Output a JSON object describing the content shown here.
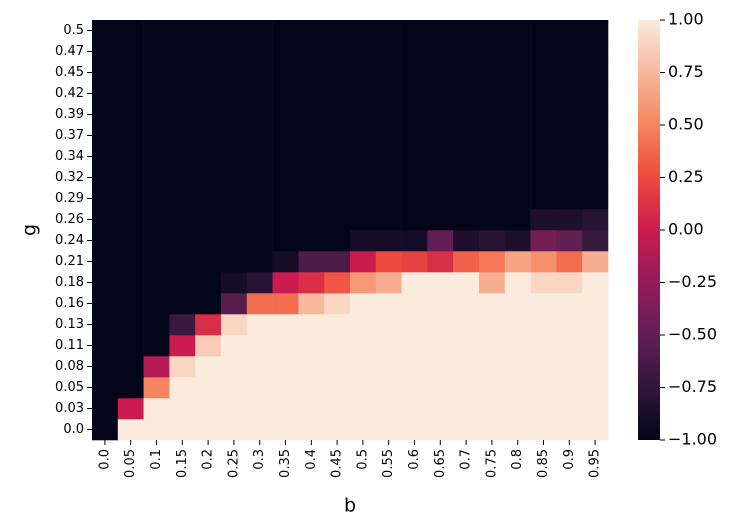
{
  "chart_data": {
    "type": "heatmap",
    "x_label": "b",
    "y_label": "g",
    "x_categories": [
      "0.0",
      "0.05",
      "0.1",
      "0.15",
      "0.2",
      "0.25",
      "0.3",
      "0.35",
      "0.4",
      "0.45",
      "0.5",
      "0.55",
      "0.6",
      "0.65",
      "0.7",
      "0.75",
      "0.8",
      "0.85",
      "0.9",
      "0.95"
    ],
    "y_categories": [
      "0.0",
      "0.03",
      "0.05",
      "0.08",
      "0.11",
      "0.13",
      "0.16",
      "0.18",
      "0.21",
      "0.24",
      "0.26",
      "0.29",
      "0.32",
      "0.34",
      "0.37",
      "0.39",
      "0.42",
      "0.45",
      "0.47",
      "0.5"
    ],
    "values": [
      [
        -1,
        1,
        1,
        1,
        1,
        1,
        1,
        1,
        1,
        1,
        1,
        1,
        1,
        1,
        1,
        1,
        1,
        1,
        1,
        1
      ],
      [
        -1,
        0,
        1,
        1,
        1,
        1,
        1,
        1,
        1,
        1,
        1,
        1,
        1,
        1,
        1,
        1,
        1,
        1,
        1,
        1
      ],
      [
        -1,
        -1,
        0.5,
        1,
        1,
        1,
        1,
        1,
        1,
        1,
        1,
        1,
        1,
        1,
        1,
        1,
        1,
        1,
        1,
        1
      ],
      [
        -1,
        -1,
        -0.1,
        0.9,
        1,
        1,
        1,
        1,
        1,
        1,
        1,
        1,
        1,
        1,
        1,
        1,
        1,
        1,
        1,
        1
      ],
      [
        -1,
        -1,
        -1,
        0,
        0.85,
        1,
        1,
        1,
        1,
        1,
        1,
        1,
        1,
        1,
        1,
        1,
        1,
        1,
        1,
        1
      ],
      [
        -1,
        -1,
        -1,
        -0.7,
        0.1,
        0.9,
        1,
        1,
        1,
        1,
        1,
        1,
        1,
        1,
        1,
        1,
        1,
        1,
        1,
        1
      ],
      [
        -1,
        -1,
        -1,
        -1,
        -1,
        -0.55,
        0.4,
        0.4,
        0.75,
        0.9,
        1,
        1,
        1,
        1,
        1,
        1,
        1,
        1,
        1,
        1
      ],
      [
        -1,
        -1,
        -1,
        -1,
        -1,
        -0.9,
        -0.8,
        0,
        0.1,
        0.3,
        0.6,
        0.7,
        1,
        1,
        1,
        0.7,
        1,
        0.9,
        0.9,
        1
      ],
      [
        -1,
        -1,
        -1,
        -1,
        -1,
        -1,
        -1,
        -0.9,
        -0.6,
        -0.6,
        0,
        0.25,
        0.2,
        0.1,
        0.35,
        0.45,
        0.65,
        0.55,
        0.4,
        0.7
      ],
      [
        -1,
        -1,
        -1,
        -1,
        -1,
        -1,
        -1,
        -1,
        -1,
        -1,
        -0.9,
        -0.9,
        -0.9,
        -0.5,
        -0.85,
        -0.8,
        -0.85,
        -0.4,
        -0.5,
        -0.7
      ],
      [
        -1,
        -1,
        -1,
        -1,
        -1,
        -1,
        -1,
        -1,
        -1,
        -1,
        -1,
        -1,
        -1,
        -1,
        -1,
        -1,
        -1,
        -0.85,
        -0.85,
        -0.8
      ],
      [
        -1,
        -1,
        -1,
        -1,
        -1,
        -1,
        -1,
        -1,
        -1,
        -1,
        -1,
        -1,
        -1,
        -1,
        -1,
        -1,
        -1,
        -1,
        -1,
        -1
      ],
      [
        -1,
        -1,
        -1,
        -1,
        -1,
        -1,
        -1,
        -1,
        -1,
        -1,
        -1,
        -1,
        -1,
        -1,
        -1,
        -1,
        -1,
        -1,
        -1,
        -1
      ],
      [
        -1,
        -1,
        -1,
        -1,
        -1,
        -1,
        -1,
        -1,
        -1,
        -1,
        -1,
        -1,
        -1,
        -1,
        -1,
        -1,
        -1,
        -1,
        -1,
        -1
      ],
      [
        -1,
        -1,
        -1,
        -1,
        -1,
        -1,
        -1,
        -1,
        -1,
        -1,
        -1,
        -1,
        -1,
        -1,
        -1,
        -1,
        -1,
        -1,
        -1,
        -1
      ],
      [
        -1,
        -1,
        -1,
        -1,
        -1,
        -1,
        -1,
        -1,
        -1,
        -1,
        -1,
        -1,
        -1,
        -1,
        -1,
        -1,
        -1,
        -1,
        -1,
        -1
      ],
      [
        -1,
        -1,
        -1,
        -1,
        -1,
        -1,
        -1,
        -1,
        -1,
        -1,
        -1,
        -1,
        -1,
        -1,
        -1,
        -1,
        -1,
        -1,
        -1,
        -1
      ],
      [
        -1,
        -1,
        -1,
        -1,
        -1,
        -1,
        -1,
        -1,
        -1,
        -1,
        -1,
        -1,
        -1,
        -1,
        -1,
        -1,
        -1,
        -1,
        -1,
        -1
      ],
      [
        -1,
        -1,
        -1,
        -1,
        -1,
        -1,
        -1,
        -1,
        -1,
        -1,
        -1,
        -1,
        -1,
        -1,
        -1,
        -1,
        -1,
        -1,
        -1,
        -1
      ],
      [
        -1,
        -1,
        -1,
        -1,
        -1,
        -1,
        -1,
        -1,
        -1,
        -1,
        -1,
        -1,
        -1,
        -1,
        -1,
        -1,
        -1,
        -1,
        -1,
        -1
      ]
    ],
    "vlim": [
      -1,
      1
    ],
    "colorbar_ticks": [
      {
        "value": 1,
        "label": "1.00"
      },
      {
        "value": 0.75,
        "label": "0.75"
      },
      {
        "value": 0.5,
        "label": "0.50"
      },
      {
        "value": 0.25,
        "label": "0.25"
      },
      {
        "value": 0,
        "label": "0.00"
      },
      {
        "value": -0.25,
        "label": "−0.25"
      },
      {
        "value": -0.5,
        "label": "−0.50"
      },
      {
        "value": -0.75,
        "label": "−0.75"
      },
      {
        "value": -1,
        "label": "−1.00"
      }
    ],
    "colormap": [
      "#03051a",
      "#30173a",
      "#611f53",
      "#931c5b",
      "#cb1b4f",
      "#ef4a3d",
      "#f6855f",
      "#f7b89c",
      "#faebdd"
    ]
  }
}
